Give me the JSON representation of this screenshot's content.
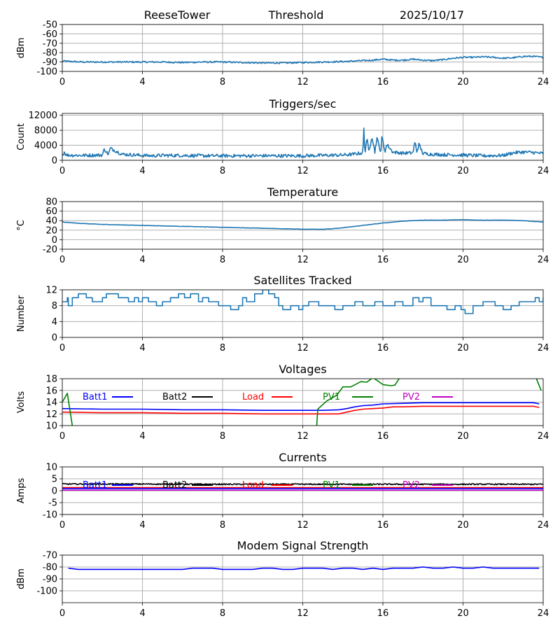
{
  "header": {
    "station": "ReeseTower",
    "title": "Threshold",
    "date": "2025/10/17"
  },
  "colors": {
    "series_default": "#1f77b4",
    "grid": "#b0b0b0",
    "batt1": "#0000ff",
    "batt2": "#000000",
    "load": "#ff0000",
    "pv1": "#008000",
    "pv2": "#bf00bf"
  },
  "chart_data": [
    {
      "id": "threshold",
      "type": "line",
      "title": "",
      "ylabel": "dBm",
      "ylim": [
        -100,
        -50
      ],
      "yticks": [
        "-50",
        "-60",
        "-70",
        "-80",
        "-90",
        "-100"
      ],
      "ytick_values": [
        -50,
        -60,
        -70,
        -80,
        -90,
        -100
      ],
      "xlim": [
        0,
        24
      ],
      "xticks": [
        "0",
        "4",
        "8",
        "12",
        "16",
        "20",
        "24"
      ],
      "series": [
        {
          "name": "Threshold",
          "color": "#1f77b4",
          "noise": 0.8,
          "x": [
            0,
            0.5,
            1,
            2,
            3,
            4,
            5,
            6,
            7,
            8,
            9,
            10,
            11,
            12,
            13,
            14,
            14.5,
            15,
            15.5,
            16,
            16.5,
            17,
            17.5,
            18,
            18.5,
            19,
            19.5,
            20,
            20.5,
            21,
            21.5,
            22,
            22.5,
            23,
            23.5,
            24
          ],
          "y": [
            -89,
            -89.5,
            -90,
            -90,
            -90,
            -90,
            -90,
            -90.5,
            -90,
            -90,
            -90.5,
            -91,
            -91,
            -90.5,
            -90,
            -89.5,
            -89,
            -88.5,
            -88,
            -87,
            -88,
            -88,
            -87,
            -88,
            -88.5,
            -87.5,
            -86,
            -85,
            -85,
            -84.5,
            -85,
            -86,
            -85.5,
            -84,
            -84,
            -85
          ]
        }
      ]
    },
    {
      "id": "triggers",
      "type": "line",
      "title": "Triggers/sec",
      "ylabel": "Count",
      "ylim": [
        0,
        12500
      ],
      "yticks": [
        "12000",
        "8000",
        "4000",
        "0"
      ],
      "ytick_values": [
        12000,
        8000,
        4000,
        0
      ],
      "xlim": [
        0,
        24
      ],
      "xticks": [
        "0",
        "4",
        "8",
        "12",
        "16",
        "20",
        "24"
      ],
      "series": [
        {
          "name": "Triggers",
          "color": "#1f77b4",
          "noise": 450,
          "x": [
            0,
            0.1,
            0.2,
            1,
            2,
            2.1,
            2.3,
            2.4,
            3,
            4,
            4.5,
            5,
            6,
            7,
            8,
            9,
            10,
            11,
            12,
            13,
            14,
            14.5,
            15,
            15.05,
            15.1,
            15.2,
            15.3,
            15.45,
            15.6,
            15.7,
            15.9,
            15.95,
            16.1,
            16.2,
            16.5,
            17,
            17.5,
            17.6,
            17.7,
            17.8,
            18,
            18.5,
            19,
            20,
            21,
            22,
            22.5,
            23,
            23.5,
            24
          ],
          "y": [
            1200,
            2200,
            1400,
            1300,
            1400,
            3000,
            1500,
            3200,
            1600,
            1300,
            1200,
            1300,
            1300,
            1200,
            1200,
            1200,
            1200,
            1200,
            1200,
            1300,
            1400,
            1600,
            2000,
            8500,
            1800,
            6000,
            2200,
            6500,
            2200,
            6000,
            2100,
            6500,
            2300,
            4200,
            2200,
            1900,
            2000,
            4900,
            2200,
            4300,
            1800,
            1600,
            1500,
            1400,
            1200,
            1300,
            2000,
            2200,
            2100,
            1800
          ]
        }
      ]
    },
    {
      "id": "temperature",
      "type": "line",
      "title": "Temperature",
      "ylabel": "°C",
      "ylim": [
        -20,
        80
      ],
      "yticks": [
        "80",
        "60",
        "40",
        "20",
        "0",
        "-20"
      ],
      "ytick_values": [
        80,
        60,
        40,
        20,
        0,
        -20
      ],
      "xlim": [
        0,
        24
      ],
      "xticks": [
        "0",
        "4",
        "8",
        "12",
        "16",
        "20",
        "24"
      ],
      "series": [
        {
          "name": "Temperature",
          "color": "#1f77b4",
          "noise": 0.4,
          "x": [
            0,
            1,
            2,
            3,
            4,
            5,
            6,
            7,
            8,
            9,
            10,
            11,
            12,
            13,
            13.5,
            14,
            15,
            16,
            17,
            18,
            19,
            20,
            21,
            22,
            23,
            24
          ],
          "y": [
            37,
            34,
            32,
            31,
            30,
            29,
            28,
            27,
            26,
            25,
            24,
            23,
            22,
            22,
            23,
            25,
            30,
            35,
            39,
            41,
            41,
            42,
            41,
            41,
            40,
            37
          ]
        }
      ]
    },
    {
      "id": "satellites",
      "type": "line",
      "title": "Satellites Tracked",
      "ylabel": "Number",
      "ylim": [
        0,
        12
      ],
      "yticks": [
        "12",
        "8",
        "4",
        "0"
      ],
      "ytick_values": [
        12,
        8,
        4,
        0
      ],
      "xlim": [
        0,
        24
      ],
      "xticks": [
        "0",
        "4",
        "8",
        "12",
        "16",
        "20",
        "24"
      ],
      "step": true,
      "series": [
        {
          "name": "Satellites",
          "color": "#1f77b4",
          "noise": 0,
          "x": [
            0,
            0.25,
            0.3,
            0.5,
            0.8,
            1.2,
            1.5,
            2.0,
            2.2,
            2.8,
            3.0,
            3.3,
            3.6,
            3.8,
            4.0,
            4.3,
            4.7,
            5.0,
            5.4,
            5.8,
            6.1,
            6.4,
            6.8,
            7.0,
            7.3,
            7.8,
            8.0,
            8.4,
            8.8,
            9.0,
            9.2,
            9.6,
            10.0,
            10.3,
            10.6,
            10.8,
            11.0,
            11.4,
            11.8,
            12.0,
            12.3,
            12.8,
            13.3,
            13.6,
            14.0,
            14.6,
            15.0,
            15.6,
            16.0,
            16.4,
            16.6,
            17.0,
            17.5,
            17.8,
            18.0,
            18.4,
            18.9,
            19.2,
            19.6,
            19.9,
            20.1,
            20.5,
            21.0,
            21.6,
            22.0,
            22.4,
            22.8,
            23.3,
            23.6,
            23.8,
            24.0
          ],
          "y": [
            9,
            10,
            8,
            10,
            11,
            10,
            9,
            10,
            11,
            10,
            10,
            9,
            10,
            9,
            10,
            9,
            8,
            9,
            10,
            11,
            10,
            11,
            9,
            10,
            9,
            8,
            8,
            7,
            8,
            10,
            9,
            11,
            12,
            11,
            10,
            8,
            7,
            8,
            7,
            8,
            9,
            8,
            8,
            7,
            8,
            9,
            8,
            9,
            8,
            8,
            9,
            8,
            10,
            9,
            10,
            8,
            8,
            7,
            8,
            7,
            6,
            8,
            9,
            8,
            7,
            8,
            9,
            9,
            10,
            9,
            10
          ]
        }
      ]
    },
    {
      "id": "voltages",
      "type": "line",
      "title": "Voltages",
      "ylabel": "Volts",
      "ylim": [
        10,
        18
      ],
      "yticks": [
        "18",
        "16",
        "14",
        "12",
        "10"
      ],
      "ytick_values": [
        18,
        16,
        14,
        12,
        10
      ],
      "xlim": [
        0,
        24
      ],
      "xticks": [
        "0",
        "4",
        "8",
        "12",
        "16",
        "20",
        "24"
      ],
      "legend": [
        "Batt1",
        "Batt2",
        "Load",
        "PV1",
        "PV2"
      ],
      "series": [
        {
          "name": "Batt1",
          "color": "#0000ff",
          "noise": 0,
          "x": [
            0,
            2,
            4,
            6,
            8,
            10,
            12,
            13,
            13.8,
            14.2,
            14.6,
            15.0,
            15.5,
            16,
            17,
            18,
            20,
            22,
            23.5,
            23.8
          ],
          "y": [
            12.9,
            12.8,
            12.8,
            12.7,
            12.7,
            12.6,
            12.6,
            12.6,
            12.7,
            12.9,
            13.2,
            13.4,
            13.5,
            13.7,
            13.8,
            13.9,
            13.9,
            13.9,
            13.9,
            13.7
          ]
        },
        {
          "name": "Load",
          "color": "#ff0000",
          "noise": 0,
          "x": [
            0,
            2,
            4,
            6,
            8,
            10,
            12,
            13,
            13.8,
            14.2,
            14.6,
            15.0,
            15.5,
            16,
            16.5,
            17,
            18,
            20,
            22,
            23.5,
            23.8
          ],
          "y": [
            12.3,
            12.2,
            12.2,
            12.1,
            12.1,
            12.0,
            12.0,
            12.0,
            12.0,
            12.3,
            12.6,
            12.8,
            12.9,
            13.0,
            13.2,
            13.2,
            13.3,
            13.3,
            13.3,
            13.3,
            13.1
          ]
        },
        {
          "name": "PV1",
          "color": "#008000",
          "noise": 0,
          "clip": true,
          "segments": [
            {
              "x": [
                0,
                0.25,
                0.5
              ],
              "y": [
                14.0,
                15.5,
                10.0
              ]
            },
            {
              "x": [
                12.7,
                12.75,
                13.2,
                13.7,
                14.0,
                14.4,
                14.9,
                15.2,
                15.5,
                16.0,
                16.4,
                16.6,
                16.9
              ],
              "y": [
                10.0,
                12.8,
                14.2,
                15.2,
                16.6,
                16.6,
                17.5,
                17.4,
                18.2,
                17.0,
                16.8,
                16.9,
                18.5
              ]
            },
            {
              "x": [
                23.6,
                23.9
              ],
              "y": [
                18.5,
                16.0
              ]
            }
          ]
        }
      ]
    },
    {
      "id": "currents",
      "type": "line",
      "title": "Currents",
      "ylabel": "Amps",
      "ylim": [
        -10,
        10
      ],
      "yticks": [
        "10",
        "5",
        "0",
        "-5",
        "-10"
      ],
      "ytick_values": [
        10,
        5,
        0,
        -5,
        -10
      ],
      "xlim": [
        0,
        24
      ],
      "xticks": [
        "0",
        "4",
        "8",
        "12",
        "16",
        "20",
        "24"
      ],
      "legend": [
        "Batt1",
        "Batt2",
        "Load",
        "PV1",
        "PV2"
      ],
      "series": [
        {
          "name": "Batt2",
          "color": "#000000",
          "noise": 0.25,
          "x": [
            0,
            4,
            8,
            12,
            16,
            20,
            24
          ],
          "y": [
            2.8,
            2.8,
            2.7,
            2.7,
            2.7,
            2.7,
            2.7
          ]
        },
        {
          "name": "Load",
          "color": "#ff0000",
          "noise": 0,
          "x": [
            0,
            24
          ],
          "y": [
            1.3,
            1.3
          ]
        },
        {
          "name": "PV2",
          "color": "#bf00bf",
          "noise": 0,
          "x": [
            0,
            24
          ],
          "y": [
            0.2,
            0.2
          ]
        },
        {
          "name": "Batt1",
          "color": "#0000ff",
          "noise": 0,
          "x": [
            0,
            24
          ],
          "y": [
            0.9,
            0.9
          ]
        }
      ]
    },
    {
      "id": "modem",
      "type": "line",
      "title": "Modem Signal Strength",
      "ylabel": "dBm",
      "ylim": [
        -110,
        -70
      ],
      "yticks": [
        "-70",
        "-80",
        "-90",
        "-100"
      ],
      "ytick_values": [
        -70,
        -80,
        -90,
        -100
      ],
      "xlim": [
        0,
        24
      ],
      "xticks": [
        "0",
        "4",
        "8",
        "12",
        "16",
        "20",
        "24"
      ],
      "series": [
        {
          "name": "Modem",
          "color": "#0000ff",
          "noise": 0,
          "x": [
            0.3,
            0.8,
            1.0,
            2,
            3,
            4,
            5,
            6,
            6.5,
            7,
            7.5,
            8,
            9,
            9.5,
            10,
            10.5,
            11,
            11.5,
            12,
            13,
            13.5,
            14,
            14.5,
            15,
            15.5,
            16,
            16.5,
            17,
            17.5,
            18,
            18.5,
            19,
            19.5,
            20,
            20.5,
            21,
            21.5,
            22,
            23,
            23.8
          ],
          "y": [
            -81,
            -82,
            -82,
            -82,
            -82,
            -82,
            -82,
            -82,
            -81,
            -81,
            -81,
            -82,
            -82,
            -82,
            -81,
            -81,
            -82,
            -82,
            -81,
            -81,
            -82,
            -81,
            -81,
            -82,
            -81,
            -82,
            -81,
            -81,
            -81,
            -80,
            -81,
            -81,
            -80,
            -81,
            -81,
            -80,
            -81,
            -81,
            -81,
            -81
          ]
        }
      ]
    }
  ]
}
